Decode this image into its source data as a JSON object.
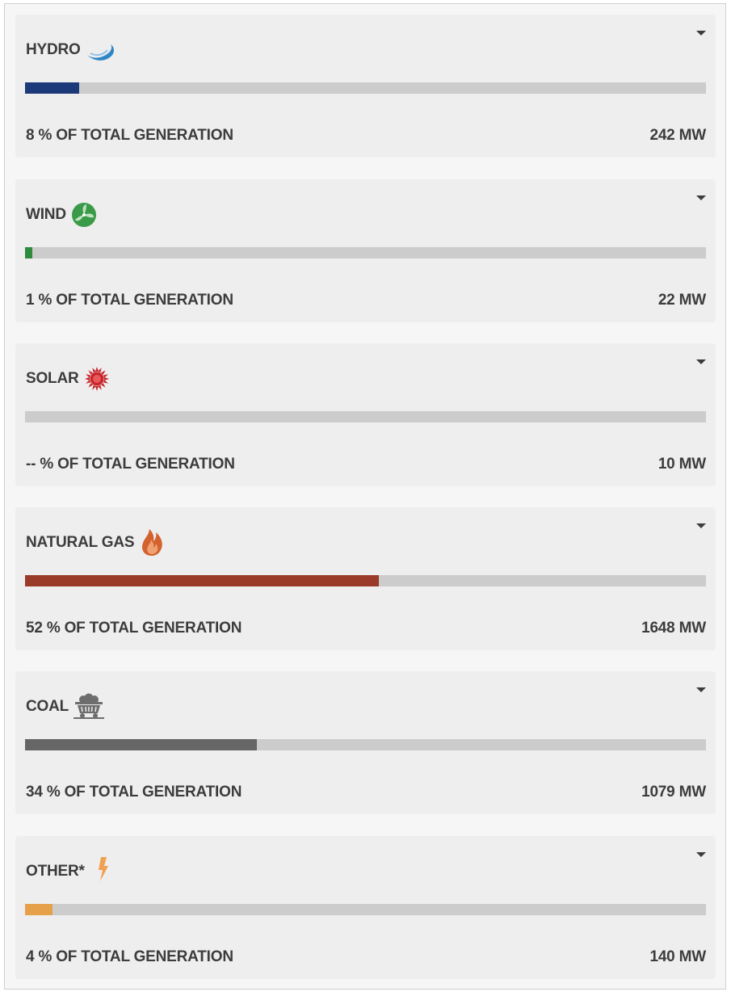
{
  "sources": [
    {
      "name": "HYDRO",
      "icon": "hydro-wave-icon",
      "color": "#1c3a7a",
      "share": 0.08,
      "percent_text": "8 % OF TOTAL GENERATION",
      "mw_text": "242 MW"
    },
    {
      "name": "WIND",
      "icon": "wind-turbine-icon",
      "color": "#2e8b3e",
      "share": 0.011,
      "percent_text": "1 % OF TOTAL GENERATION",
      "mw_text": "22 MW"
    },
    {
      "name": "SOLAR",
      "icon": "sun-icon",
      "color": "#c0282c",
      "share": 0,
      "percent_text": "-- % OF TOTAL GENERATION",
      "mw_text": "10 MW"
    },
    {
      "name": "NATURAL GAS",
      "icon": "flame-icon",
      "color": "#9a3a28",
      "share": 0.52,
      "percent_text": "52 % OF TOTAL GENERATION",
      "mw_text": "1648 MW"
    },
    {
      "name": "COAL",
      "icon": "coal-cart-icon",
      "color": "#666666",
      "share": 0.34,
      "percent_text": "34 % OF TOTAL GENERATION",
      "mw_text": "1079 MW"
    },
    {
      "name": "OTHER*",
      "icon": "lightning-icon",
      "color": "#e6a04a",
      "share": 0.04,
      "percent_text": "4 % OF TOTAL GENERATION",
      "mw_text": "140 MW"
    }
  ]
}
